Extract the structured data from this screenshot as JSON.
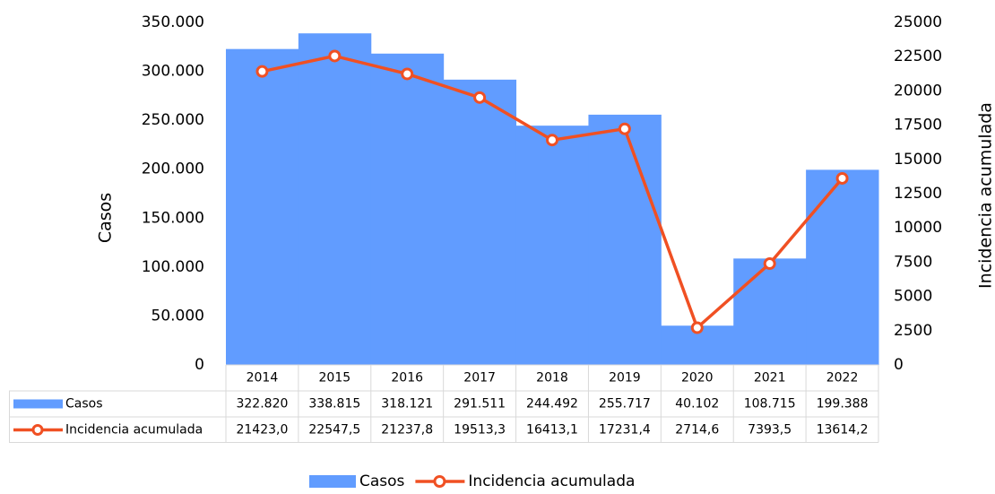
{
  "chart_data": {
    "type": "bar",
    "categories": [
      "2014",
      "2015",
      "2016",
      "2017",
      "2018",
      "2019",
      "2020",
      "2021",
      "2022"
    ],
    "y_label": "Casos",
    "y2_label": "Incidencia acumulada",
    "ylim": [
      0,
      350000
    ],
    "yticks": [
      0,
      {
        "value": 50000,
        "label": "50.000"
      },
      {
        "value": 100000,
        "label": "100.000"
      },
      {
        "value": 150000,
        "label": "150.000"
      },
      {
        "value": 200000,
        "label": "200.000"
      },
      {
        "value": 250000,
        "label": "250.000"
      },
      {
        "value": 300000,
        "label": "300.000"
      },
      {
        "value": 350000,
        "label": "350.000"
      }
    ],
    "y2lim": [
      0,
      25000
    ],
    "y2ticks": [
      0,
      2500,
      5000,
      7500,
      10000,
      12500,
      15000,
      17500,
      20000,
      22500,
      25000
    ],
    "legend": "bottom",
    "data_table": true,
    "series": [
      {
        "name": "Casos",
        "type": "bar",
        "color": "#619cff",
        "values": [
          322820,
          338815,
          318121,
          291511,
          244492,
          255717,
          40102,
          108715,
          199388
        ],
        "value_labels": [
          "322.820",
          "338.815",
          "318.121",
          "291.511",
          "244.492",
          "255.717",
          "40.102",
          "108.715",
          "199.388"
        ]
      },
      {
        "name": "Incidencia acumulada",
        "type": "line",
        "axis": "y2",
        "color": "#f05023",
        "values": [
          21423.0,
          22547.5,
          21237.8,
          19513.3,
          16413.1,
          17231.4,
          2714.6,
          7393.5,
          13614.2
        ],
        "value_labels": [
          "21423,0",
          "22547,5",
          "21237,8",
          "19513,3",
          "16413,1",
          "17231,4",
          "2714,6",
          "7393,5",
          "13614,2"
        ]
      }
    ]
  }
}
